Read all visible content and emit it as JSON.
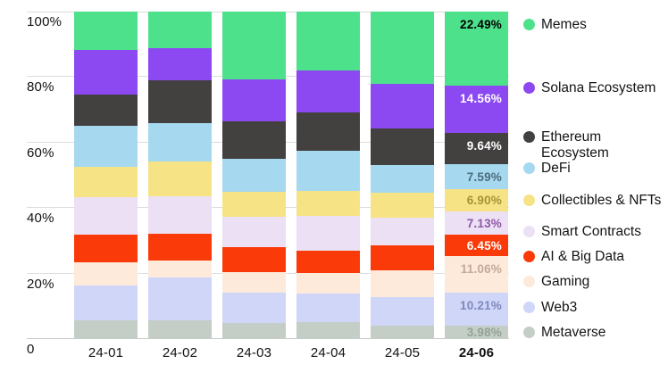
{
  "chart_data": {
    "type": "bar",
    "stacked": true,
    "percent_stacked": true,
    "title": "",
    "xlabel": "",
    "ylabel": "",
    "y_range": [
      0,
      100
    ],
    "grid": true,
    "legend_position": "right",
    "y_ticks": [
      "100%",
      "80%",
      "60%",
      "40%",
      "20%",
      "0"
    ],
    "categories": [
      "24-01",
      "24-02",
      "24-03",
      "24-04",
      "24-05",
      "24-06"
    ],
    "highlight_category": "24-06",
    "last_bar_value_labels": [
      "22.49%",
      "14.56%",
      "9.64%",
      "7.59%",
      "6.90%",
      "7.13%",
      "6.45%",
      "11.06%",
      "10.21%",
      "3.98%"
    ],
    "series": [
      {
        "name": "Memes",
        "color": "#4ee18b",
        "label_color": "#000000",
        "values": [
          11.7,
          11.1,
          20.7,
          18.0,
          22.0,
          22.49
        ]
      },
      {
        "name": "Solana Ecosystem",
        "color": "#8c49f2",
        "label_color": "#ffffff",
        "values": [
          13.6,
          9.9,
          12.7,
          12.9,
          13.5,
          14.56
        ]
      },
      {
        "name": "Ethereum Ecosystem",
        "color": "#434040",
        "label_color": "#ffffff",
        "values": [
          9.6,
          13.1,
          11.5,
          11.8,
          11.1,
          9.64
        ]
      },
      {
        "name": "DeFi",
        "color": "#a6d9ef",
        "label_color": "#4d6c7c",
        "values": [
          12.6,
          11.8,
          10.0,
          12.3,
          8.5,
          7.59
        ]
      },
      {
        "name": "Collectibles & NFTs",
        "color": "#f6e385",
        "label_color": "#a59339",
        "values": [
          9.3,
          10.7,
          7.5,
          7.5,
          7.5,
          6.9
        ]
      },
      {
        "name": "Smart Contracts",
        "color": "#ece0f4",
        "label_color": "#9158a5",
        "values": [
          11.4,
          11.5,
          9.3,
          10.6,
          8.4,
          7.13
        ]
      },
      {
        "name": "AI & Big Data",
        "color": "#fb3a09",
        "label_color": "#ffffff",
        "values": [
          8.5,
          8.2,
          7.7,
          6.8,
          7.7,
          6.45
        ]
      },
      {
        "name": "Gaming",
        "color": "#fdeada",
        "label_color": "#c3aa9b",
        "values": [
          7.1,
          5.1,
          6.4,
          6.4,
          8.2,
          11.06
        ]
      },
      {
        "name": "Web3",
        "color": "#cfd6f8",
        "label_color": "#7f88bd",
        "values": [
          10.7,
          13.1,
          9.2,
          8.7,
          8.6,
          10.21
        ]
      },
      {
        "name": "Metaverse",
        "color": "#c4cec7",
        "label_color": "#93a295",
        "values": [
          5.5,
          5.5,
          5.0,
          5.0,
          4.5,
          3.98
        ]
      }
    ]
  }
}
